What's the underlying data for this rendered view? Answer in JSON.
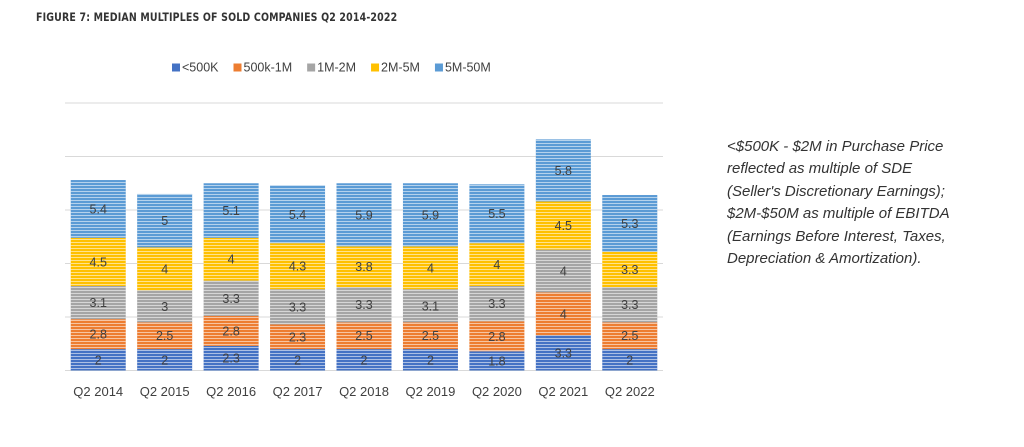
{
  "figure_title": "FIGURE 7:  MEDIAN MULTIPLES OF SOLD COMPANIES Q2 2014-2022",
  "note_lines": [
    "<$500K - $2M in Purchase Price",
    "reflected as multiple of SDE",
    "(Seller's Discretionary Earnings);",
    "$2M-$50M as multiple of EBITDA",
    "(Earnings Before Interest, Taxes,",
    "Depreciation & Amortization)."
  ],
  "chart_data": {
    "type": "bar",
    "stacked": true,
    "categories": [
      "Q2 2014",
      "Q2 2015",
      "Q2 2016",
      "Q2 2017",
      "Q2 2018",
      "Q2 2019",
      "Q2 2020",
      "Q2 2021",
      "Q2 2022"
    ],
    "series": [
      {
        "name": "<500K",
        "color": "#4472C4",
        "values": [
          2,
          2,
          2.3,
          2,
          2,
          2,
          1.8,
          3.3,
          2
        ]
      },
      {
        "name": "500k-1M",
        "color": "#ED7D31",
        "values": [
          2.8,
          2.5,
          2.8,
          2.3,
          2.5,
          2.5,
          2.8,
          4,
          2.5
        ]
      },
      {
        "name": "1M-2M",
        "color": "#A5A5A5",
        "values": [
          3.1,
          3,
          3.3,
          3.3,
          3.3,
          3.1,
          3.3,
          4,
          3.3
        ]
      },
      {
        "name": "2M-5M",
        "color": "#FFC000",
        "values": [
          4.5,
          4,
          4,
          4.3,
          3.8,
          4,
          4,
          4.5,
          3.3
        ]
      },
      {
        "name": "5M-50M",
        "color": "#5B9BD5",
        "values": [
          5.4,
          5,
          5.1,
          5.4,
          5.9,
          5.9,
          5.5,
          5.8,
          5.3
        ]
      }
    ],
    "ylim": [
      0,
      25
    ],
    "grid": true,
    "legend": "top-center"
  }
}
